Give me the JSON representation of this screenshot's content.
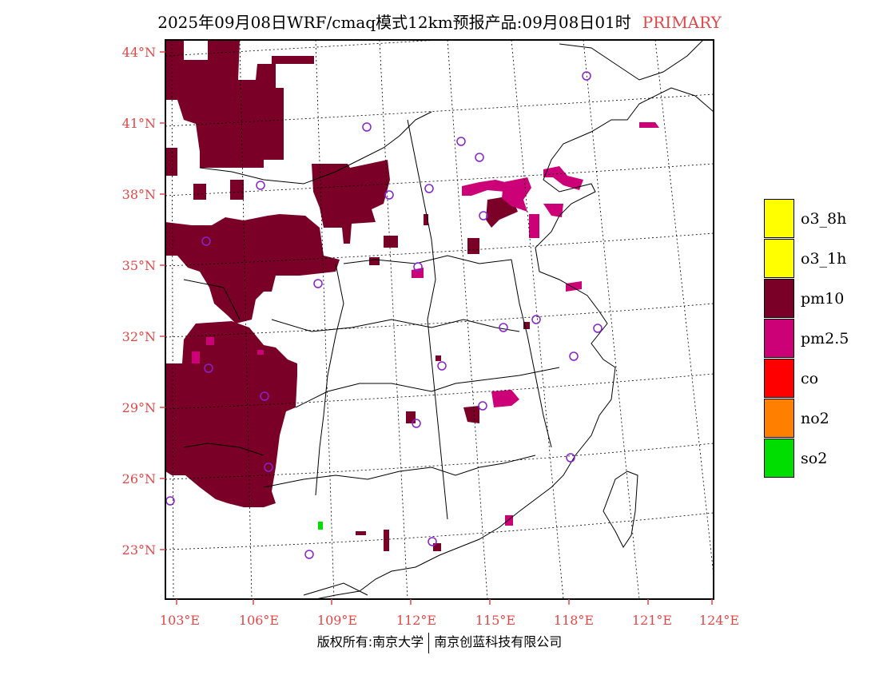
{
  "title": {
    "main": "2025年09月08日WRF/cmaq模式12km预报产品:09月08日01时",
    "tag": "PRIMARY"
  },
  "colors": {
    "pm10": "#7a0028",
    "pm25": "#cc0077",
    "so2": "#00dd00",
    "station": "#8822cc",
    "label": "#e04848"
  },
  "axes": {
    "lat_labels": [
      "44°N",
      "41°N",
      "38°N",
      "35°N",
      "32°N",
      "29°N",
      "26°N",
      "23°N"
    ],
    "lon_labels": [
      "103°E",
      "106°E",
      "109°E",
      "112°E",
      "115°E",
      "118°E",
      "121°E",
      "124°E"
    ]
  },
  "legend": [
    {
      "label": "o3_8h",
      "color": "#ffff00"
    },
    {
      "label": "o3_1h",
      "color": "#ffff00"
    },
    {
      "label": "pm10",
      "color": "#7a0028"
    },
    {
      "label": "pm2.5",
      "color": "#cc0077"
    },
    {
      "label": "co",
      "color": "#ff0000"
    },
    {
      "label": "no2",
      "color": "#ff8000"
    },
    {
      "label": "so2",
      "color": "#00dd00"
    }
  ],
  "footer": {
    "left": "版权所有:南京大学",
    "right": "南京创蓝科技有限公司"
  }
}
